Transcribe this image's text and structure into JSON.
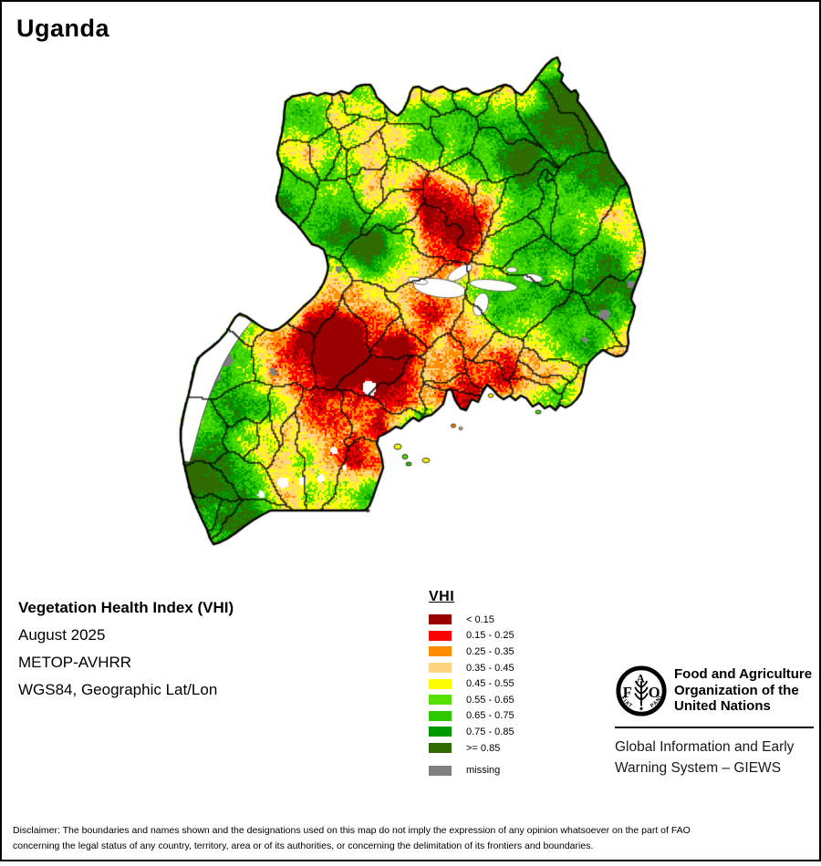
{
  "title": "Uganda",
  "map": {
    "country": "Uganda"
  },
  "info": {
    "product": "Vegetation Health Index (VHI)",
    "date": "August 2025",
    "sensor": "METOP-AVHRR",
    "projection": "WGS84, Geographic Lat/Lon"
  },
  "legend": {
    "title": "VHI",
    "items": [
      {
        "label": "< 0.15",
        "color": "#9b0000"
      },
      {
        "label": "0.15 - 0.25",
        "color": "#ff0000"
      },
      {
        "label": "0.25 - 0.35",
        "color": "#ff8c00"
      },
      {
        "label": "0.35 - 0.45",
        "color": "#ffd37f"
      },
      {
        "label": "0.45 - 0.55",
        "color": "#ffff00"
      },
      {
        "label": "0.55 - 0.65",
        "color": "#55e000"
      },
      {
        "label": "0.65 - 0.75",
        "color": "#2fc800"
      },
      {
        "label": "0.75 - 0.85",
        "color": "#009a00"
      },
      {
        "label": ">= 0.85",
        "color": "#2f6b00"
      }
    ],
    "missing": {
      "label": "missing",
      "color": "#808080"
    }
  },
  "branding": {
    "org_lines": [
      "Food and Agriculture",
      "Organization of the",
      "United Nations"
    ],
    "logo_motto": "FIAT PANIS",
    "logo_letters": [
      "F",
      "A",
      "O"
    ],
    "giews_line1": "Global Information and Early",
    "giews_line2": "Warning System – GIEWS"
  },
  "footer": {
    "disclaimer_line1": "Disclaimer: The boundaries and names shown and the designations used on this map do not imply the expression of any opinion whatsoever on the part of FAO",
    "disclaimer_line2": "concerning the legal status of any country, territory, area or of its authorities, or concerning the delimitation of its frontiers and boundaries."
  }
}
